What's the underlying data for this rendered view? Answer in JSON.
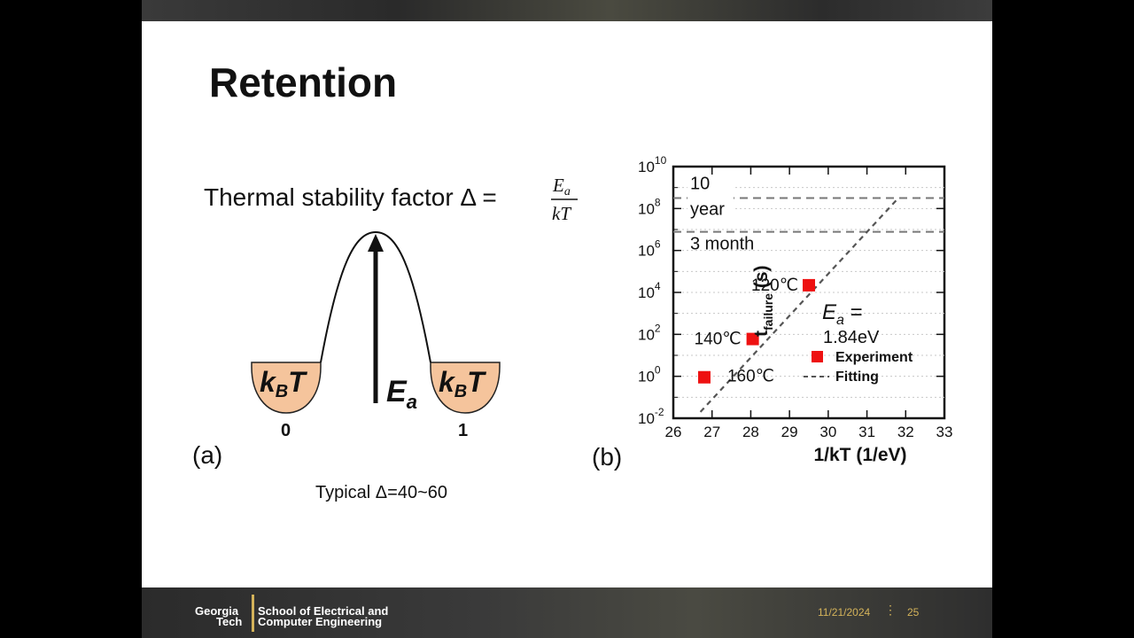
{
  "slide": {
    "title": "Retention",
    "formula": {
      "prefix": "Thermal stability factor Δ =",
      "numerator": "E",
      "numerator_sub": "a",
      "denominator": "kT"
    },
    "diagram_a": {
      "well_label_main": "k",
      "well_label_sub": "B",
      "well_label_tail": "T",
      "barrier_label_main": "E",
      "barrier_label_sub": "a",
      "state_left": "0",
      "state_right": "1",
      "panel_label": "(a)",
      "caption": "Typical Δ=40~60"
    },
    "panel_b_label": "(b)"
  },
  "chart_data": {
    "type": "scatter",
    "xlabel": "1/kT (1/eV)",
    "ylabel_main": "t",
    "ylabel_sub": "failure",
    "ylabel_unit": " (s)",
    "xlim": [
      26,
      33
    ],
    "ylim_log10": [
      -2,
      10
    ],
    "y_scale": "log",
    "x_ticks": [
      26,
      27,
      28,
      29,
      30,
      31,
      32,
      33
    ],
    "y_tick_exponents": [
      -2,
      0,
      2,
      4,
      6,
      8,
      10
    ],
    "y_tick_base": "10",
    "grid": "horizontal dotted",
    "series": [
      {
        "name": "Experiment",
        "marker": "square",
        "color": "#ee1111",
        "points": [
          {
            "x": 26.8,
            "y": 0.9,
            "label": "160℃"
          },
          {
            "x": 28.05,
            "y": 60,
            "label": "140℃"
          },
          {
            "x": 29.5,
            "y": 22000,
            "label": "120℃"
          }
        ]
      },
      {
        "name": "Fitting",
        "style": "dashed",
        "color": "#555555",
        "points": [
          {
            "x": 26.7,
            "y": 0.02
          },
          {
            "x": 31.8,
            "y": 300000000
          }
        ]
      }
    ],
    "reference_lines": [
      {
        "y": 315360000,
        "label_line1": "10",
        "label_line2": "year"
      },
      {
        "y": 7776000,
        "label_line1": "3 month",
        "label_line2": ""
      }
    ],
    "annotation": {
      "main": "E",
      "sub": "a",
      "suffix": " =",
      "value": "1.84eV"
    },
    "legend_position": "bottom-right"
  },
  "footer": {
    "logo_line1_left": "Georgia",
    "logo_line2_left": "Tech",
    "logo_line1_right": "School of Electrical and",
    "logo_line2_right": "Computer Engineering",
    "date": "11/21/2024",
    "page": "25",
    "colors": {
      "accent": "#d4b35a"
    }
  }
}
